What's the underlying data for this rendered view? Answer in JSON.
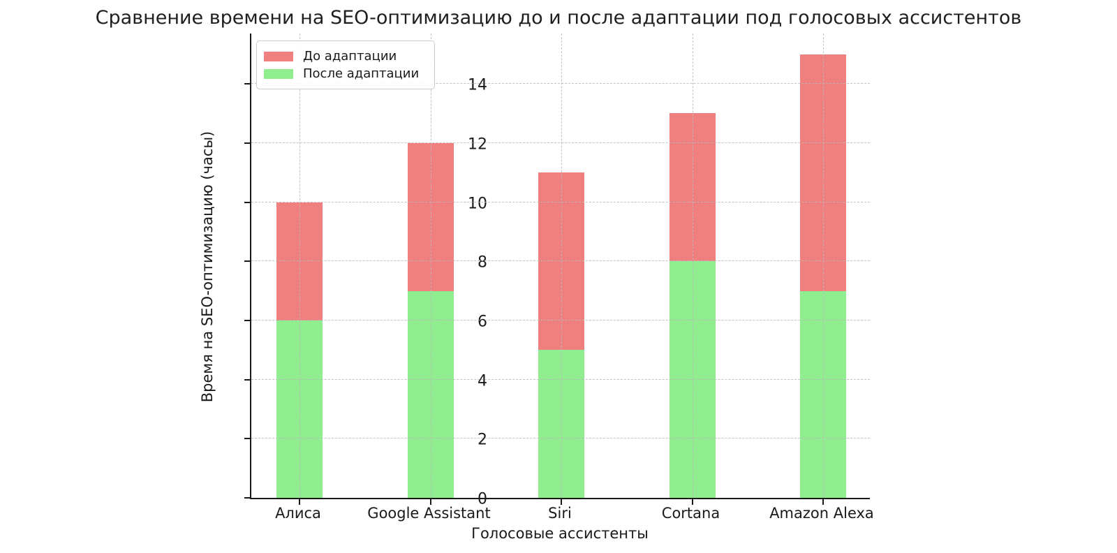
{
  "title": "Сравнение времени на SEO-оптимизацию до и после адаптации под голосовых ассистентов",
  "chart_data": {
    "type": "bar",
    "style": "overlay",
    "title": "Сравнение времени на SEO-оптимизацию до и после адаптации под голосовых ассистентов",
    "categories": [
      "Алиса",
      "Google Assistant",
      "Siri",
      "Cortana",
      "Amazon Alexa"
    ],
    "series": [
      {
        "name": "До адаптации",
        "color": "#F08080",
        "values": [
          10,
          12,
          11,
          13,
          15
        ]
      },
      {
        "name": "После адаптации",
        "color": "#90EE90",
        "values": [
          6,
          7,
          5,
          8,
          7
        ]
      }
    ],
    "xlabel": "Голосовые ассистенты",
    "ylabel": "Время на SEO-оптимизацию (часы)",
    "yticks": [
      0,
      2,
      4,
      6,
      8,
      10,
      12,
      14
    ],
    "ylim": [
      0,
      15.75
    ],
    "grid": true,
    "grid_style": "dashed",
    "legend_position": "upper left"
  }
}
